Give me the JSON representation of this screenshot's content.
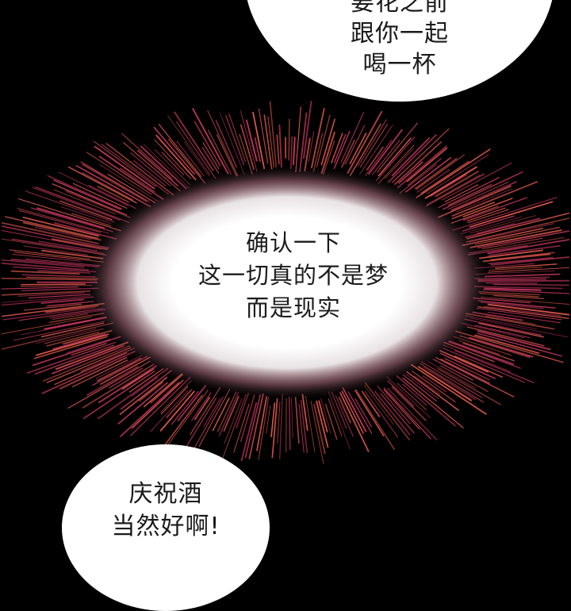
{
  "panel": {
    "background": "#000000",
    "top_bubble": {
      "lines": [
        "要花之前",
        "跟你一起",
        "喝一杯"
      ]
    },
    "burst": {
      "inner_color": "#ffffff",
      "ray_color_outer": "#c0355c",
      "ray_color_warm": "#e0584a",
      "lines": [
        "确认一下",
        "这一切真的不是梦",
        "而是现实"
      ]
    },
    "bottom_bubble": {
      "lines": [
        "庆祝酒",
        "当然好啊!"
      ]
    }
  }
}
